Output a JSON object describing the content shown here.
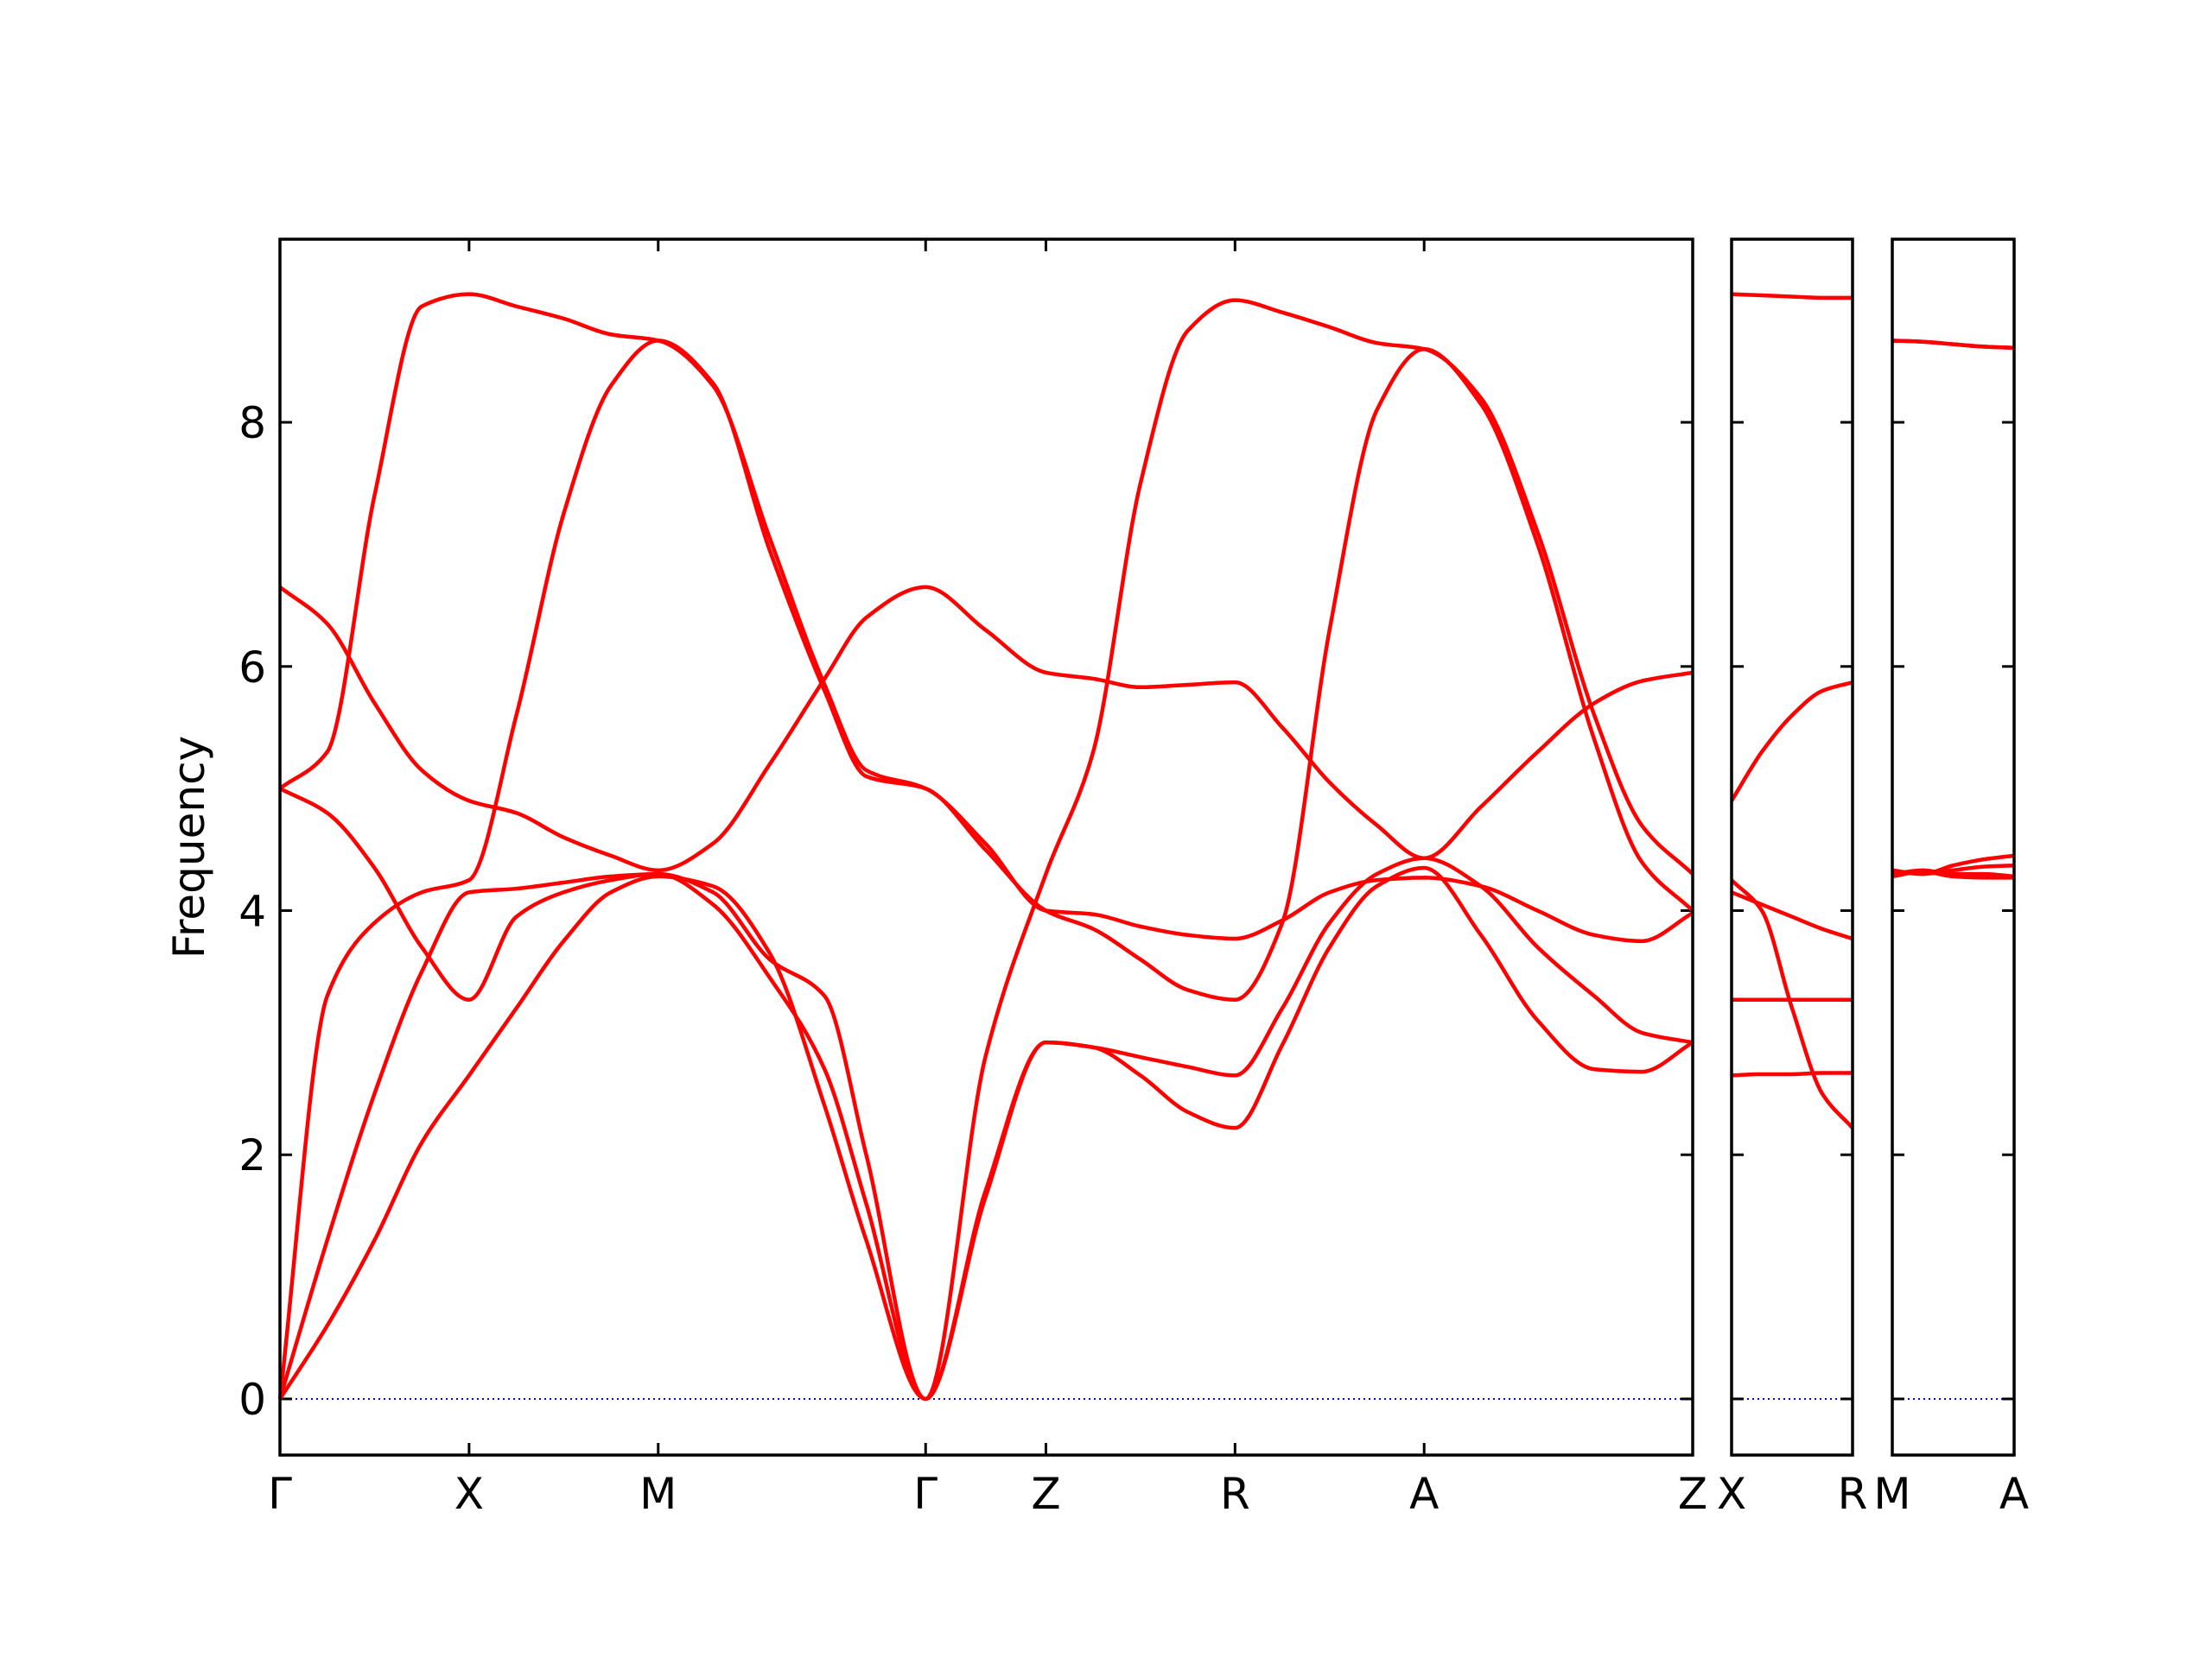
{
  "chart_data": [
    {
      "type": "line",
      "ylabel": "Frequency",
      "ytick_labels": true,
      "zero_line_color": "#0000ff",
      "xlim": [
        0,
        7.47
      ],
      "ylim": [
        -0.46,
        9.5
      ],
      "yticks": [
        0,
        2,
        4,
        6,
        8
      ],
      "xticks": [
        {
          "value": 0,
          "label": "Γ"
        },
        {
          "value": 1,
          "label": "X"
        },
        {
          "value": 2,
          "label": "M"
        },
        {
          "value": 3.414,
          "label": "Γ"
        },
        {
          "value": 4.05,
          "label": "Z"
        },
        {
          "value": 5.05,
          "label": "R"
        },
        {
          "value": 6.05,
          "label": "A"
        },
        {
          "value": 7.47,
          "label": "Z"
        }
      ],
      "x": [
        0,
        0.25,
        0.5,
        0.75,
        1,
        1.25,
        1.5,
        1.75,
        2,
        2.29,
        2.59,
        2.88,
        3.1,
        3.414,
        3.73,
        4.05,
        4.3,
        4.55,
        4.8,
        5.05,
        5.3,
        5.55,
        5.8,
        6.05,
        6.35,
        6.65,
        6.95,
        7.2,
        7.47
      ],
      "series": [
        {
          "color": "#ff0000",
          "values": [
            5.0,
            5.3,
            7.4,
            8.95,
            9.05,
            8.95,
            8.85,
            8.72,
            8.67,
            8.3,
            7.05,
            5.85,
            5.15,
            5.0,
            4.55,
            4.0,
            3.97,
            3.87,
            3.8,
            3.77,
            3.92,
            4.15,
            4.25,
            4.27,
            4.2,
            4.0,
            3.8,
            3.75,
            3.98
          ]
        },
        {
          "color": "#ff0000",
          "values": [
            6.65,
            6.35,
            5.7,
            5.15,
            4.9,
            4.8,
            4.6,
            4.45,
            4.33,
            4.55,
            5.2,
            5.9,
            6.4,
            6.65,
            6.3,
            5.95,
            5.9,
            5.83,
            5.85,
            5.87,
            5.5,
            5.05,
            4.7,
            4.43,
            4.85,
            5.3,
            5.7,
            5.88,
            5.95
          ]
        },
        {
          "color": "#ff0000",
          "values": [
            5.0,
            4.8,
            4.35,
            3.7,
            3.27,
            3.95,
            4.15,
            4.25,
            4.3,
            4.15,
            3.6,
            3.3,
            2.0,
            0,
            2.8,
            4.3,
            5.3,
            7.5,
            8.75,
            9.0,
            8.9,
            8.78,
            8.65,
            8.6,
            8.2,
            7.1,
            5.6,
            4.7,
            4.3
          ]
        },
        {
          "color": "#ff0000",
          "values": [
            0,
            3.3,
            3.9,
            4.15,
            4.25,
            5.6,
            7.25,
            8.3,
            8.67,
            8.32,
            6.95,
            5.8,
            5.1,
            5.0,
            4.5,
            4.0,
            3.85,
            3.6,
            3.35,
            3.27,
            3.9,
            6.3,
            8.1,
            8.6,
            8.15,
            7.0,
            5.4,
            4.4,
            4.0
          ]
        },
        {
          "color": "#ff0000",
          "values": [
            0,
            1.3,
            2.5,
            3.5,
            4.15,
            4.18,
            4.23,
            4.28,
            4.3,
            4.05,
            3.45,
            2.7,
            1.6,
            0,
            1.7,
            2.92,
            2.88,
            2.8,
            2.72,
            2.65,
            3.2,
            3.9,
            4.3,
            4.43,
            4.2,
            3.7,
            3.3,
            3.0,
            2.92
          ]
        },
        {
          "color": "#ff0000",
          "values": [
            0,
            0.6,
            1.3,
            2.1,
            2.65,
            3.2,
            3.75,
            4.15,
            4.28,
            4.2,
            3.65,
            2.4,
            1.3,
            0,
            1.65,
            2.92,
            2.88,
            2.65,
            2.35,
            2.22,
            2.9,
            3.7,
            4.2,
            4.35,
            3.8,
            3.1,
            2.7,
            2.68,
            2.92
          ]
        }
      ]
    },
    {
      "type": "line",
      "ytick_labels": false,
      "zero_line_color": "#0000ff",
      "xlim": [
        0,
        0.64
      ],
      "ylim": [
        -0.46,
        9.5
      ],
      "yticks": [
        0,
        2,
        4,
        6,
        8
      ],
      "xticks": [
        {
          "value": 0,
          "label": "X"
        },
        {
          "value": 0.64,
          "label": "R"
        }
      ],
      "x": [
        0,
        0.16,
        0.32,
        0.48,
        0.64
      ],
      "series": [
        {
          "color": "#ff0000",
          "values": [
            9.05,
            9.04,
            9.03,
            9.02,
            9.02
          ]
        },
        {
          "color": "#ff0000",
          "values": [
            4.9,
            5.3,
            5.6,
            5.8,
            5.87
          ]
        },
        {
          "color": "#ff0000",
          "values": [
            4.25,
            4.0,
            3.2,
            2.5,
            2.22
          ]
        },
        {
          "color": "#ff0000",
          "values": [
            4.15,
            4.05,
            3.95,
            3.85,
            3.77
          ]
        },
        {
          "color": "#ff0000",
          "values": [
            3.27,
            3.27,
            3.27,
            3.27,
            3.27
          ]
        },
        {
          "color": "#ff0000",
          "values": [
            2.65,
            2.66,
            2.66,
            2.67,
            2.67
          ]
        }
      ]
    },
    {
      "type": "line",
      "ytick_labels": false,
      "zero_line_color": "#0000ff",
      "xlim": [
        0,
        0.64
      ],
      "ylim": [
        -0.46,
        9.5
      ],
      "yticks": [
        0,
        2,
        4,
        6,
        8
      ],
      "xticks": [
        {
          "value": 0,
          "label": "M"
        },
        {
          "value": 0.64,
          "label": "A"
        }
      ],
      "x": [
        0,
        0.16,
        0.32,
        0.48,
        0.64
      ],
      "series": [
        {
          "color": "#ff0000",
          "values": [
            8.67,
            8.66,
            8.64,
            8.62,
            8.61
          ]
        },
        {
          "color": "#ff0000",
          "values": [
            8.67,
            8.66,
            8.64,
            8.62,
            8.61
          ]
        },
        {
          "color": "#ff0000",
          "values": [
            4.33,
            4.3,
            4.37,
            4.42,
            4.45
          ]
        },
        {
          "color": "#ff0000",
          "values": [
            4.32,
            4.3,
            4.33,
            4.36,
            4.37
          ]
        },
        {
          "color": "#ff0000",
          "values": [
            4.28,
            4.32,
            4.28,
            4.27,
            4.27
          ]
        },
        {
          "color": "#ff0000",
          "values": [
            4.3,
            4.33,
            4.3,
            4.3,
            4.28
          ]
        }
      ]
    }
  ]
}
